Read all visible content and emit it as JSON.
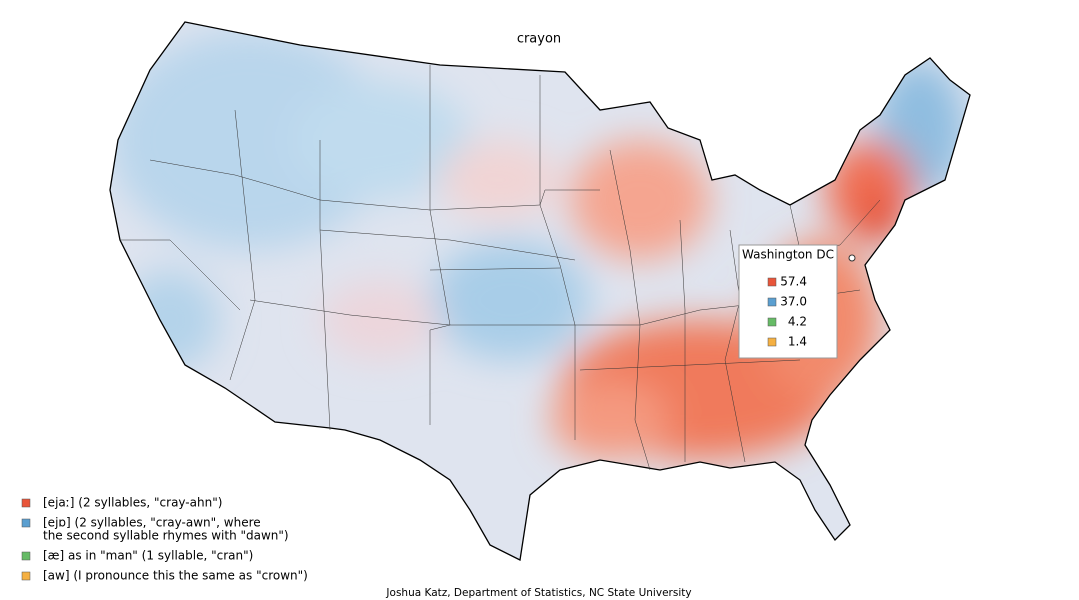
{
  "title": "crayon",
  "legend": [
    {
      "lines": [
        "[ejaː] (2 syllables, \"cray-ahn\")"
      ],
      "color": "#e8553a"
    },
    {
      "lines": [
        "[ejɒ] (2 syllables, \"cray-awn\", where",
        "the second syllable rhymes with \"dawn\")"
      ],
      "color": "#5b9fd0"
    },
    {
      "lines": [
        "[æ] as in \"man\" (1 syllable, \"cran\")"
      ],
      "color": "#66bb66"
    },
    {
      "lines": [
        "[aw] (I pronounce this the same as \"crown\")"
      ],
      "color": "#f5b042"
    }
  ],
  "tooltip": {
    "title": "Washington DC",
    "items": [
      "57.4",
      "37.0",
      "4.2",
      "1.4"
    ]
  },
  "credit": "Joshua Katz, Department of Statistics, NC State University"
}
